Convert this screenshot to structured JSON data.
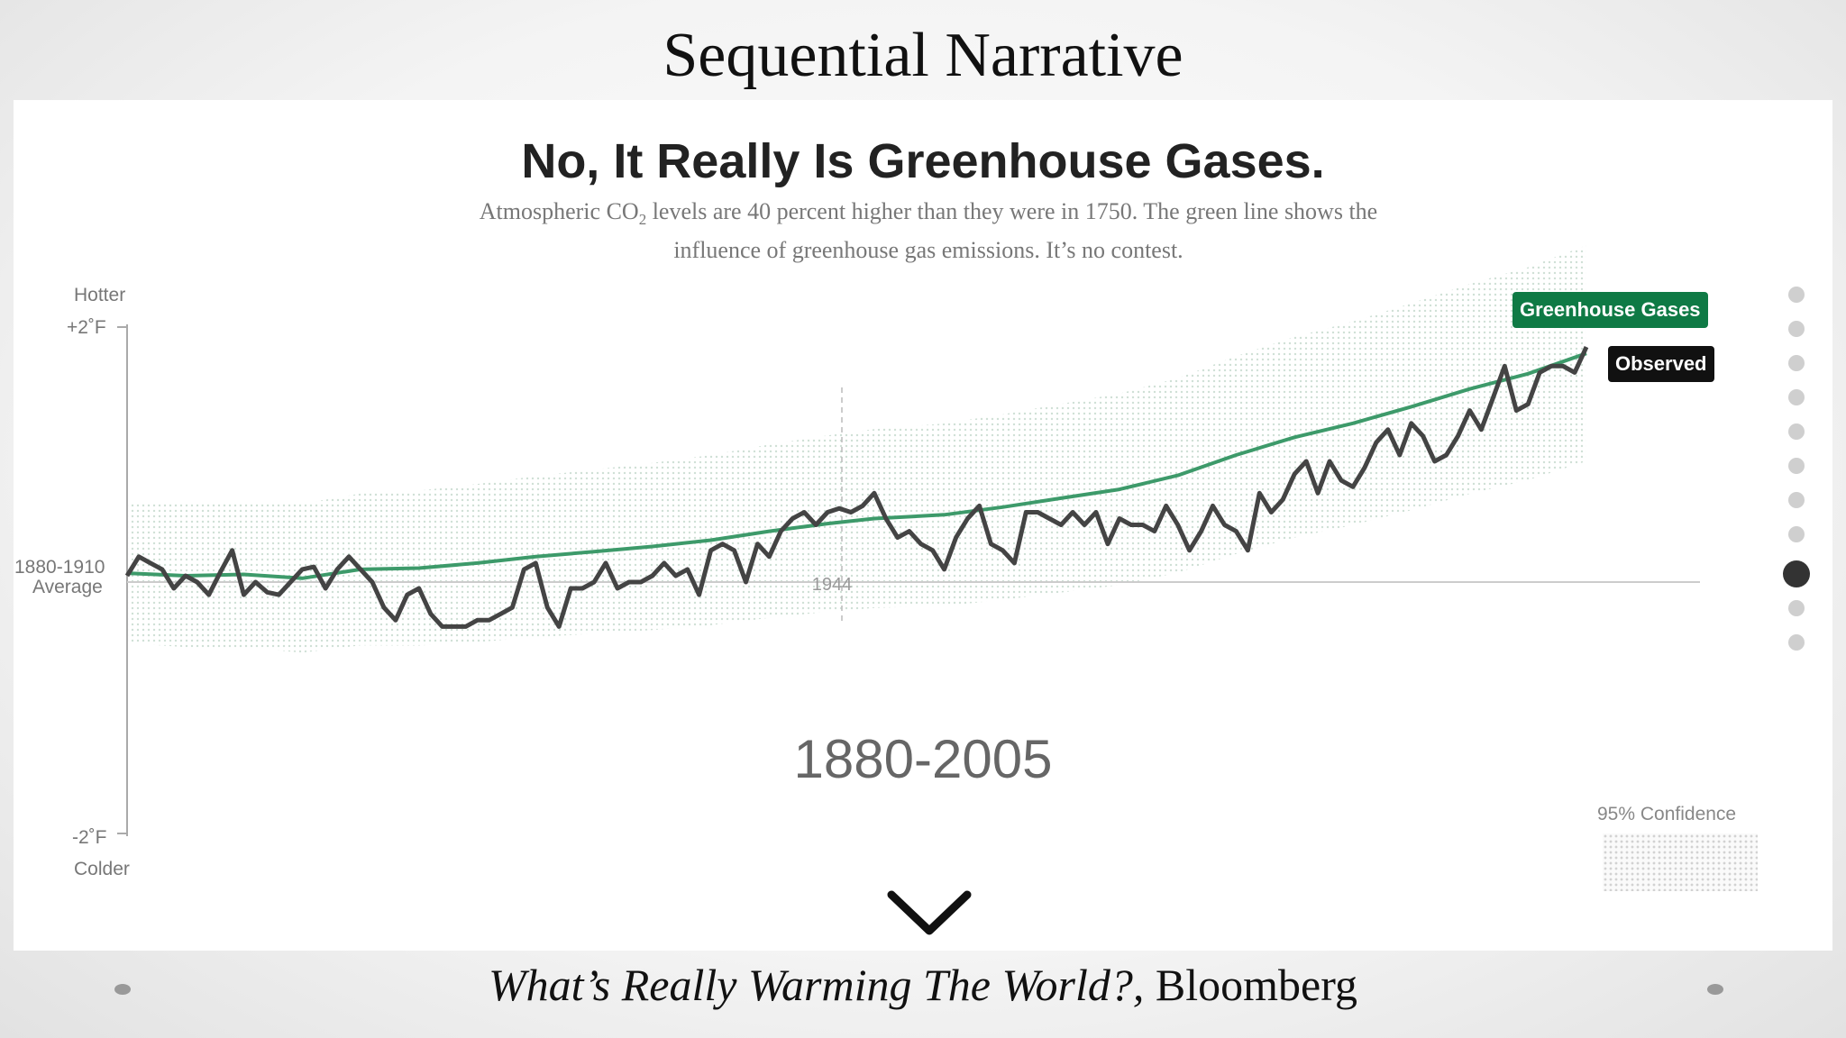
{
  "slide": {
    "title": "Sequential Narrative",
    "caption_italic": "What’s Really Warming The World?,",
    "caption_source": "Bloomberg"
  },
  "chart_data": {
    "type": "line",
    "title": "No, It Really Is Greenhouse Gases.",
    "subtitle_part1": "Atmospheric CO",
    "subtitle_sub": "2",
    "subtitle_part2": " levels are 40 percent higher than they were in 1750. The green line shows the",
    "subtitle_line2": "influence of greenhouse gas emissions. It’s no contest.",
    "y_axis": {
      "top_word": "Hotter",
      "top_tick": "+2˚F",
      "baseline_label_1": "1880-1910",
      "baseline_label_2": "Average",
      "bottom_tick": "-2˚F",
      "bottom_word": "Colder",
      "ylim": [
        -2,
        2
      ]
    },
    "xlim": [
      1880,
      2005
    ],
    "marker_year": "1944",
    "range_label": "1880-2005",
    "confidence_label": "95% Confidence",
    "series": [
      {
        "name": "Greenhouse Gases",
        "color": "#3d9a6a",
        "label_bg": "#0f7a45",
        "points": [
          [
            1880,
            0.07
          ],
          [
            1885,
            0.05
          ],
          [
            1890,
            0.06
          ],
          [
            1895,
            0.03
          ],
          [
            1900,
            0.1
          ],
          [
            1905,
            0.11
          ],
          [
            1910,
            0.15
          ],
          [
            1915,
            0.2
          ],
          [
            1920,
            0.24
          ],
          [
            1925,
            0.28
          ],
          [
            1930,
            0.33
          ],
          [
            1935,
            0.4
          ],
          [
            1940,
            0.46
          ],
          [
            1944,
            0.5
          ],
          [
            1950,
            0.53
          ],
          [
            1955,
            0.59
          ],
          [
            1960,
            0.66
          ],
          [
            1965,
            0.73
          ],
          [
            1970,
            0.84
          ],
          [
            1975,
            1.0
          ],
          [
            1980,
            1.14
          ],
          [
            1985,
            1.25
          ],
          [
            1990,
            1.38
          ],
          [
            1995,
            1.52
          ],
          [
            2000,
            1.64
          ],
          [
            2005,
            1.8
          ]
        ]
      },
      {
        "name": "Observed",
        "color": "#444444",
        "label_bg": "#111111",
        "points": [
          [
            1880,
            0.05
          ],
          [
            1881,
            0.2
          ],
          [
            1882,
            0.15
          ],
          [
            1883,
            0.1
          ],
          [
            1884,
            -0.05
          ],
          [
            1885,
            0.05
          ],
          [
            1886,
            0.0
          ],
          [
            1887,
            -0.1
          ],
          [
            1888,
            0.08
          ],
          [
            1889,
            0.25
          ],
          [
            1890,
            -0.1
          ],
          [
            1891,
            0.0
          ],
          [
            1892,
            -0.08
          ],
          [
            1893,
            -0.1
          ],
          [
            1894,
            0.0
          ],
          [
            1895,
            0.1
          ],
          [
            1896,
            0.12
          ],
          [
            1897,
            -0.05
          ],
          [
            1898,
            0.1
          ],
          [
            1899,
            0.2
          ],
          [
            1900,
            0.1
          ],
          [
            1901,
            0.0
          ],
          [
            1902,
            -0.2
          ],
          [
            1903,
            -0.3
          ],
          [
            1904,
            -0.1
          ],
          [
            1905,
            -0.05
          ],
          [
            1906,
            -0.25
          ],
          [
            1907,
            -0.35
          ],
          [
            1908,
            -0.35
          ],
          [
            1909,
            -0.35
          ],
          [
            1910,
            -0.3
          ],
          [
            1911,
            -0.3
          ],
          [
            1912,
            -0.25
          ],
          [
            1913,
            -0.2
          ],
          [
            1914,
            0.1
          ],
          [
            1915,
            0.15
          ],
          [
            1916,
            -0.2
          ],
          [
            1917,
            -0.35
          ],
          [
            1918,
            -0.05
          ],
          [
            1919,
            -0.05
          ],
          [
            1920,
            0.0
          ],
          [
            1921,
            0.15
          ],
          [
            1922,
            -0.05
          ],
          [
            1923,
            0.0
          ],
          [
            1924,
            0.0
          ],
          [
            1925,
            0.05
          ],
          [
            1926,
            0.15
          ],
          [
            1927,
            0.05
          ],
          [
            1928,
            0.1
          ],
          [
            1929,
            -0.1
          ],
          [
            1930,
            0.25
          ],
          [
            1931,
            0.3
          ],
          [
            1932,
            0.25
          ],
          [
            1933,
            0.0
          ],
          [
            1934,
            0.3
          ],
          [
            1935,
            0.2
          ],
          [
            1936,
            0.4
          ],
          [
            1937,
            0.5
          ],
          [
            1938,
            0.55
          ],
          [
            1939,
            0.45
          ],
          [
            1940,
            0.55
          ],
          [
            1941,
            0.58
          ],
          [
            1942,
            0.55
          ],
          [
            1943,
            0.6
          ],
          [
            1944,
            0.7
          ],
          [
            1945,
            0.5
          ],
          [
            1946,
            0.35
          ],
          [
            1947,
            0.4
          ],
          [
            1948,
            0.3
          ],
          [
            1949,
            0.25
          ],
          [
            1950,
            0.1
          ],
          [
            1951,
            0.35
          ],
          [
            1952,
            0.5
          ],
          [
            1953,
            0.6
          ],
          [
            1954,
            0.3
          ],
          [
            1955,
            0.25
          ],
          [
            1956,
            0.15
          ],
          [
            1957,
            0.55
          ],
          [
            1958,
            0.55
          ],
          [
            1959,
            0.5
          ],
          [
            1960,
            0.45
          ],
          [
            1961,
            0.55
          ],
          [
            1962,
            0.45
          ],
          [
            1963,
            0.55
          ],
          [
            1964,
            0.3
          ],
          [
            1965,
            0.5
          ],
          [
            1966,
            0.45
          ],
          [
            1967,
            0.45
          ],
          [
            1968,
            0.4
          ],
          [
            1969,
            0.6
          ],
          [
            1970,
            0.45
          ],
          [
            1971,
            0.25
          ],
          [
            1972,
            0.4
          ],
          [
            1973,
            0.6
          ],
          [
            1974,
            0.45
          ],
          [
            1975,
            0.4
          ],
          [
            1976,
            0.25
          ],
          [
            1977,
            0.7
          ],
          [
            1978,
            0.55
          ],
          [
            1979,
            0.65
          ],
          [
            1980,
            0.85
          ],
          [
            1981,
            0.95
          ],
          [
            1982,
            0.7
          ],
          [
            1983,
            0.95
          ],
          [
            1984,
            0.8
          ],
          [
            1985,
            0.75
          ],
          [
            1986,
            0.9
          ],
          [
            1987,
            1.1
          ],
          [
            1988,
            1.2
          ],
          [
            1989,
            1.0
          ],
          [
            1990,
            1.25
          ],
          [
            1991,
            1.15
          ],
          [
            1992,
            0.95
          ],
          [
            1993,
            1.0
          ],
          [
            1994,
            1.15
          ],
          [
            1995,
            1.35
          ],
          [
            1996,
            1.2
          ],
          [
            1997,
            1.45
          ],
          [
            1998,
            1.7
          ],
          [
            1999,
            1.35
          ],
          [
            2000,
            1.4
          ],
          [
            2001,
            1.65
          ],
          [
            2002,
            1.7
          ],
          [
            2003,
            1.7
          ],
          [
            2004,
            1.65
          ],
          [
            2005,
            1.85
          ]
        ]
      }
    ]
  },
  "nav": {
    "dot_count": 11,
    "active_dot": 8
  }
}
